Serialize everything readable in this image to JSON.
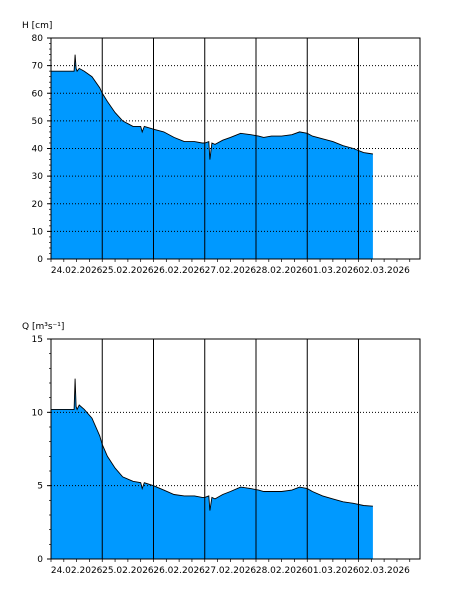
{
  "chart_data": [
    {
      "type": "area",
      "ylabel": "H [cm]",
      "ylim": [
        0,
        80
      ],
      "yticks": [
        0,
        10,
        20,
        30,
        40,
        50,
        60,
        70,
        80
      ],
      "xlim": [
        0,
        7.2
      ],
      "xticks": [
        "24.02.2026",
        "25.02.2026",
        "26.02.2026",
        "27.02.2026",
        "28.02.2026",
        "01.03.2026",
        "02.03.2026"
      ],
      "grid": true,
      "fill_color": "#0099ff",
      "x": [
        0,
        0.3,
        0.45,
        0.47,
        0.49,
        0.51,
        0.55,
        0.65,
        0.8,
        0.95,
        1.0,
        1.1,
        1.25,
        1.4,
        1.6,
        1.75,
        1.78,
        1.82,
        2.0,
        2.2,
        2.4,
        2.6,
        2.8,
        2.95,
        3.0,
        3.08,
        3.1,
        3.14,
        3.2,
        3.35,
        3.5,
        3.7,
        3.9,
        4.05,
        4.15,
        4.3,
        4.5,
        4.7,
        4.85,
        5.0,
        5.1,
        5.3,
        5.5,
        5.7,
        5.9,
        6.1,
        6.28
      ],
      "series": [
        {
          "values": [
            68,
            68,
            68,
            74,
            69,
            68,
            69,
            68,
            66,
            62,
            60,
            57,
            53,
            50,
            48,
            48,
            46,
            48,
            47,
            46,
            44,
            42.5,
            42.5,
            42,
            42,
            42.5,
            36,
            42,
            41.5,
            43,
            44,
            45.5,
            45,
            44.5,
            44,
            44.5,
            44.5,
            45,
            46,
            45.5,
            44.5,
            43.5,
            42.5,
            41,
            40,
            38.5,
            38
          ]
        }
      ]
    },
    {
      "type": "area",
      "ylabel": "Q [m³s⁻¹]",
      "ylim": [
        0,
        15
      ],
      "yticks": [
        0,
        5,
        10,
        15
      ],
      "xlim": [
        0,
        7.2
      ],
      "xticks": [
        "24.02.2026",
        "25.02.2026",
        "26.02.2026",
        "27.02.2026",
        "28.02.2026",
        "01.03.2026",
        "02.03.2026"
      ],
      "grid": true,
      "fill_color": "#0099ff",
      "x": [
        0,
        0.3,
        0.45,
        0.47,
        0.49,
        0.51,
        0.55,
        0.65,
        0.8,
        0.95,
        1.0,
        1.1,
        1.25,
        1.4,
        1.6,
        1.75,
        1.78,
        1.82,
        2.0,
        2.2,
        2.4,
        2.6,
        2.8,
        2.95,
        3.0,
        3.08,
        3.1,
        3.14,
        3.2,
        3.35,
        3.5,
        3.7,
        3.9,
        4.05,
        4.15,
        4.3,
        4.5,
        4.7,
        4.85,
        5.0,
        5.1,
        5.3,
        5.5,
        5.7,
        5.9,
        6.1,
        6.28
      ],
      "series": [
        {
          "values": [
            10.2,
            10.2,
            10.2,
            12.3,
            10.4,
            10.2,
            10.5,
            10.2,
            9.6,
            8.4,
            7.8,
            7.0,
            6.2,
            5.6,
            5.3,
            5.2,
            4.8,
            5.2,
            5.0,
            4.7,
            4.4,
            4.3,
            4.3,
            4.2,
            4.2,
            4.3,
            3.3,
            4.2,
            4.1,
            4.4,
            4.6,
            4.9,
            4.8,
            4.7,
            4.6,
            4.6,
            4.6,
            4.7,
            4.9,
            4.8,
            4.6,
            4.3,
            4.1,
            3.9,
            3.8,
            3.65,
            3.6
          ]
        }
      ]
    }
  ]
}
